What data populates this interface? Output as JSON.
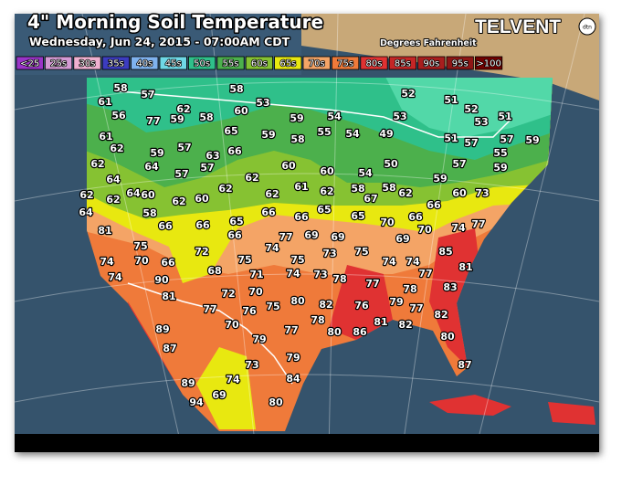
{
  "header": {
    "title": "4\" Morning Soil Temperature",
    "subtitle": "Wednesday, Jun 24, 2015 - 07:00AM CDT",
    "units": "Degrees Fahrenheit",
    "logo": "TELVENT",
    "logo_badge": "dtn"
  },
  "legend": [
    {
      "label": "<25",
      "color": "#9a34c8"
    },
    {
      "label": "25s",
      "color": "#d49ad4"
    },
    {
      "label": "30s",
      "color": "#f0b0d0"
    },
    {
      "label": "35s",
      "color": "#3c3cc0"
    },
    {
      "label": "40s",
      "color": "#7fb2ee"
    },
    {
      "label": "45s",
      "color": "#6fd8e6"
    },
    {
      "label": "50s",
      "color": "#2fc08a"
    },
    {
      "label": "55s",
      "color": "#4cb04c"
    },
    {
      "label": "60s",
      "color": "#86c232"
    },
    {
      "label": "65s",
      "color": "#e8e810"
    },
    {
      "label": "70s",
      "color": "#f4a466"
    },
    {
      "label": "75s",
      "color": "#ef7a3a"
    },
    {
      "label": "80s",
      "color": "#e03232"
    },
    {
      "label": "85s",
      "color": "#c42626"
    },
    {
      "label": "90s",
      "color": "#a81e1e"
    },
    {
      "label": "95s",
      "color": "#8e1616"
    },
    {
      "label": ">100",
      "color": "#700000"
    }
  ],
  "stations": [
    58,
    57,
    58,
    53,
    52,
    51,
    52,
    53,
    51,
    61,
    56,
    77,
    59,
    62,
    58,
    60,
    59,
    54,
    53,
    61,
    62,
    59,
    57,
    65,
    66,
    59,
    58,
    55,
    54,
    49,
    51,
    57,
    57,
    59,
    62,
    64,
    57,
    63,
    57,
    62,
    60,
    60,
    54,
    50,
    57,
    55,
    59,
    64,
    64,
    60,
    62,
    62,
    62,
    60,
    62,
    62,
    61,
    62,
    58,
    67,
    58,
    62,
    59,
    60,
    73,
    64,
    58,
    66,
    66,
    65,
    66,
    66,
    65,
    65,
    70,
    66,
    66,
    74,
    77,
    81,
    75,
    66,
    77,
    69,
    69,
    74,
    72,
    69,
    70,
    85,
    74,
    70,
    66,
    75,
    75,
    73,
    75,
    74,
    74,
    77,
    81,
    74,
    90,
    68,
    71,
    74,
    73,
    78,
    77,
    78,
    83,
    81,
    72,
    70,
    80,
    82,
    76,
    79,
    77,
    82,
    77,
    76,
    75,
    70,
    77,
    78,
    80,
    86,
    81,
    82,
    80,
    89,
    79,
    87,
    79,
    73,
    87,
    74,
    84,
    89,
    69,
    80,
    94
  ]
}
